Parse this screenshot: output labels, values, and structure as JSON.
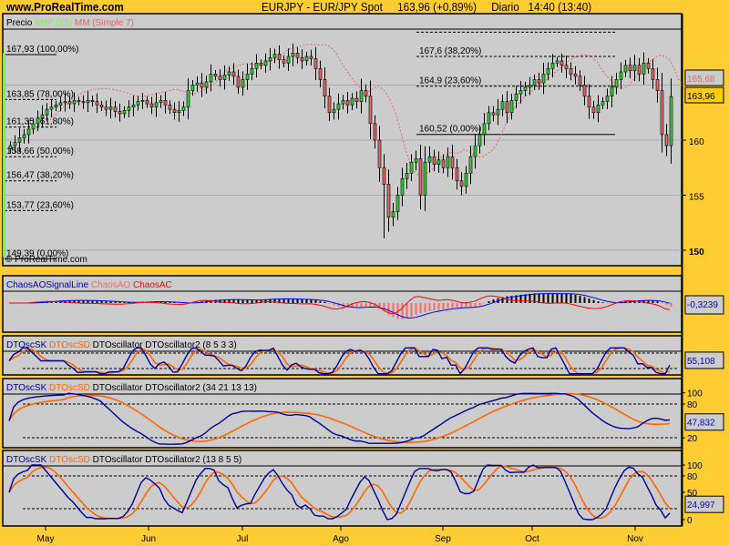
{
  "header": {
    "site": "www.ProRealTime.com",
    "instrument": "EURJPY - EUR/JPY Spot",
    "quote": "163,96 (+0,89%)",
    "period": "Diario",
    "time": "14:40 (13:40)"
  },
  "colors": {
    "background": "#ffcc33",
    "panel": "#cccccc",
    "up": "#33cc33",
    "down": "#e06666",
    "sk": "#000099",
    "sd": "#ff6600",
    "vnp": "#66ff33",
    "mm": "#e06666"
  },
  "chart_data": [
    {
      "type": "candlestick",
      "panel": "price",
      "legend": [
        "Precio",
        "VNP (25)",
        "MM (Simple 7)"
      ],
      "watermark": "© ProRealTime.com",
      "x_tick_labels": [
        "May",
        "Jun",
        "Jul",
        "Ago",
        "Sep",
        "Oct",
        "Nov"
      ],
      "y_ticks": [
        150,
        155,
        160
      ],
      "ylim": [
        147.5,
        171
      ],
      "grid": true,
      "closes": [
        159.5,
        159.8,
        160.2,
        160.5,
        161,
        161.5,
        162,
        162.3,
        162.8,
        163,
        163.2,
        163.4,
        163.5,
        163.3,
        163.6,
        163.5,
        163.4,
        163.6,
        163.5,
        163.2,
        163,
        162.8,
        163,
        162.6,
        162.4,
        162.7,
        163,
        163.2,
        163.5,
        163.6,
        163.3,
        163,
        163.4,
        163.6,
        163.2,
        162.8,
        162.5,
        162.7,
        163,
        164.5,
        165,
        165.2,
        164.8,
        165.3,
        166,
        165.8,
        165.5,
        165.9,
        166.2,
        165.8,
        164.8,
        165.5,
        166,
        166.5,
        167,
        166.8,
        167.2,
        167.5,
        167.8,
        167.3,
        167,
        167.6,
        167.9,
        167.5,
        167.2,
        167.6,
        167.4,
        166.5,
        165.5,
        164,
        162.5,
        162.8,
        163.3,
        163.6,
        163.2,
        163.8,
        163.5,
        164.5,
        164,
        161.5,
        160,
        157.5,
        156,
        153,
        153.5,
        155,
        156.5,
        157,
        158,
        158.3,
        155,
        158,
        158.5,
        157.8,
        158.2,
        157.5,
        158.5,
        157.5,
        156.3,
        155.8,
        157,
        158.5,
        159.5,
        160.5,
        161.5,
        162.5,
        162.3,
        162.8,
        163.5,
        162.5,
        163.6,
        164.2,
        164.5,
        164.8,
        165,
        165.5,
        165.2,
        166,
        166.5,
        167,
        167.2,
        166.8,
        166.5,
        166,
        165.8,
        165,
        164,
        163,
        162.5,
        163.2,
        163.5,
        164,
        164.8,
        165.5,
        166.2,
        166.8,
        166.3,
        166.8,
        166,
        167,
        166.5,
        165.5,
        164.5,
        160.5,
        159.5,
        163.96
      ],
      "fib_left": [
        {
          "price": 167.93,
          "label": "167,93 (100,00%)"
        },
        {
          "price": 163.85,
          "label": "163,85 (78,00%)"
        },
        {
          "price": 161.35,
          "label": "161,35 (61,80%)"
        },
        {
          "price": 158.66,
          "label": "158,66 (50,00%)"
        },
        {
          "price": 156.47,
          "label": "156,47 (38,20%)"
        },
        {
          "price": 153.77,
          "label": "153,77 (23,60%)"
        },
        {
          "price": 149.39,
          "label": "149,39 (0,00%)"
        }
      ],
      "fib_right": [
        {
          "price": 169.8,
          "label": ""
        },
        {
          "price": 167.6,
          "label": "167,6 (38,20%)"
        },
        {
          "price": 164.9,
          "label": "164,9 (23,60%)"
        },
        {
          "price": 160.52,
          "label": "160,52 (0,00%)"
        }
      ],
      "last_values": {
        "mm": "165,68",
        "price": "163,96"
      }
    },
    {
      "type": "bar",
      "panel": "chaos",
      "legend": [
        "ChaosAOSignalLine",
        "ChaosAO",
        "ChaosAC"
      ],
      "last_value": "-0,3239"
    },
    {
      "type": "line",
      "panel": "dto1",
      "legend": [
        "DTOscSK",
        "DTOscSD",
        "DTOscillator DTOscillator2 (8 5 3 3)"
      ],
      "params": [
        8,
        5,
        3,
        3
      ],
      "last_value": "55,108",
      "ylim": [
        0,
        100
      ],
      "levels": [
        20,
        80
      ]
    },
    {
      "type": "line",
      "panel": "dto2",
      "legend": [
        "DTOscSK",
        "DTOscSD",
        "DTOscillator DTOscillator2 (34 21 13 13)"
      ],
      "params": [
        34,
        21,
        13,
        13
      ],
      "last_value": "47,832",
      "y_ticks": [
        "100",
        "80",
        "20"
      ],
      "ylim": [
        0,
        100
      ],
      "levels": [
        20,
        80
      ]
    },
    {
      "type": "line",
      "panel": "dto3",
      "legend": [
        "DTOscSK",
        "DTOscSD",
        "DTOscillator DTOscillator2 (13 8 5 5)"
      ],
      "params": [
        13,
        8,
        5,
        5
      ],
      "last_value": "24,997",
      "y_ticks": [
        "100",
        "80",
        "50",
        "0"
      ],
      "ylim": [
        0,
        100
      ],
      "levels": [
        20,
        80
      ]
    }
  ]
}
